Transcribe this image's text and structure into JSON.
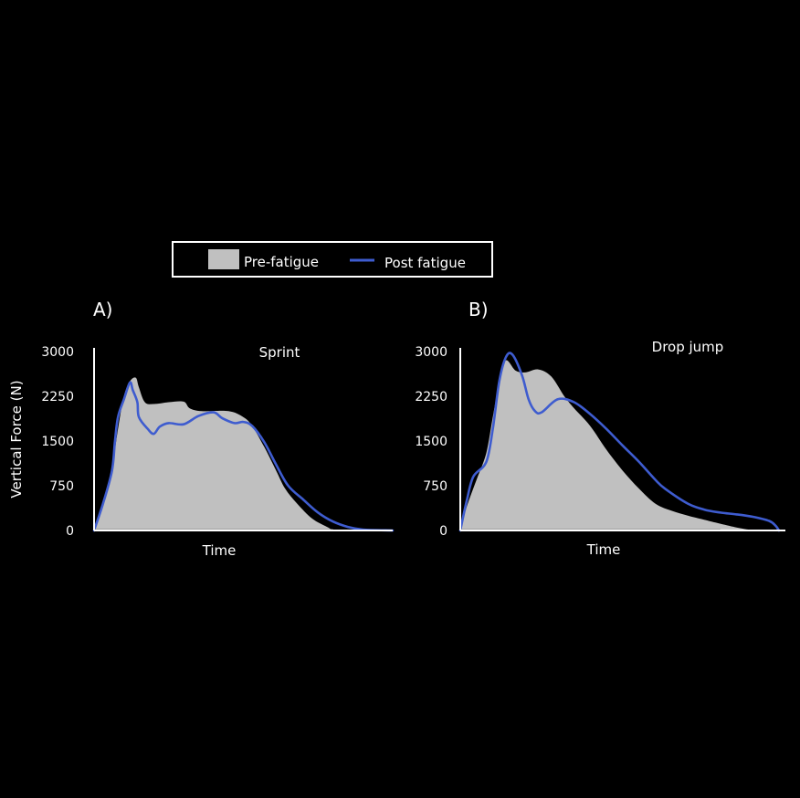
{
  "legend": {
    "items": [
      {
        "label": "Pre-fatigue",
        "kind": "area"
      },
      {
        "label": "Post fatigue",
        "kind": "line"
      }
    ]
  },
  "colors": {
    "background": "#000000",
    "pre_fatigue_fill": "#c0c0c0",
    "post_fatigue_line": "#3e5ccf",
    "axis": "#ffffff",
    "text": "#ffffff"
  },
  "chart_data": [
    {
      "type": "area",
      "panel_label": "A)",
      "title": "Sprint",
      "xlabel": "Time",
      "ylabel": "Vertical Force (N)",
      "ylim": [
        0,
        3000
      ],
      "yticks": [
        0,
        750,
        1500,
        2250,
        3000
      ],
      "ytick_labels": [
        "0",
        "750",
        "1500",
        "2250",
        "3000"
      ],
      "xlim": [
        0,
        1
      ],
      "x_ticks_shown": false,
      "grid": false,
      "series": [
        {
          "name": "Pre-fatigue",
          "style": "filled-area",
          "x": [
            0,
            0.03,
            0.06,
            0.08,
            0.1,
            0.12,
            0.14,
            0.15,
            0.17,
            0.2,
            0.25,
            0.3,
            0.32,
            0.36,
            0.45,
            0.5,
            0.53,
            0.57,
            0.61,
            0.64,
            0.68,
            0.73,
            0.78,
            0.8,
            0.82
          ],
          "y": [
            0,
            500,
            1050,
            1700,
            2250,
            2500,
            2560,
            2400,
            2150,
            2120,
            2150,
            2160,
            2050,
            2000,
            2000,
            1900,
            1750,
            1400,
            1000,
            700,
            450,
            200,
            60,
            10,
            0
          ]
        },
        {
          "name": "Post fatigue",
          "style": "line",
          "x": [
            0,
            0.03,
            0.06,
            0.07,
            0.08,
            0.1,
            0.12,
            0.13,
            0.145,
            0.15,
            0.18,
            0.2,
            0.22,
            0.25,
            0.3,
            0.35,
            0.4,
            0.43,
            0.47,
            0.5,
            0.53,
            0.57,
            0.61,
            0.65,
            0.7,
            0.75,
            0.8,
            0.85,
            0.9,
            1.0
          ],
          "y": [
            0,
            450,
            1000,
            1500,
            1900,
            2200,
            2480,
            2350,
            2150,
            1900,
            1700,
            1620,
            1740,
            1800,
            1780,
            1920,
            1980,
            1880,
            1800,
            1820,
            1750,
            1480,
            1100,
            750,
            520,
            300,
            150,
            60,
            15,
            0
          ]
        }
      ]
    },
    {
      "type": "area",
      "panel_label": "B)",
      "title": "Drop jump",
      "xlabel": "Time",
      "ylabel": "",
      "ylim": [
        0,
        3000
      ],
      "yticks": [
        0,
        750,
        1500,
        2250,
        3000
      ],
      "ytick_labels": [
        "0",
        "750",
        "1500",
        "2250",
        "3000"
      ],
      "xlim": [
        0,
        1
      ],
      "x_ticks_shown": false,
      "grid": false,
      "series": [
        {
          "name": "Pre-fatigue",
          "style": "filled-area",
          "x": [
            0,
            0.02,
            0.05,
            0.08,
            0.1,
            0.12,
            0.14,
            0.17,
            0.2,
            0.24,
            0.28,
            0.32,
            0.35,
            0.4,
            0.45,
            0.5,
            0.55,
            0.6,
            0.65,
            0.7,
            0.75,
            0.85,
            0.9,
            0.92
          ],
          "y": [
            0,
            400,
            850,
            1300,
            1900,
            2500,
            2850,
            2680,
            2650,
            2700,
            2580,
            2250,
            2050,
            1750,
            1350,
            1000,
            700,
            450,
            330,
            250,
            180,
            50,
            5,
            0
          ]
        },
        {
          "name": "Post fatigue",
          "style": "line",
          "x": [
            0,
            0.02,
            0.04,
            0.08,
            0.1,
            0.12,
            0.14,
            0.16,
            0.19,
            0.21,
            0.23,
            0.25,
            0.3,
            0.35,
            0.4,
            0.45,
            0.5,
            0.55,
            0.6,
            0.63,
            0.7,
            0.75,
            0.8,
            0.85,
            0.9,
            0.95,
            0.97,
            0.98
          ],
          "y": [
            0,
            500,
            900,
            1150,
            1700,
            2500,
            2900,
            2950,
            2600,
            2200,
            2000,
            1980,
            2200,
            2150,
            1950,
            1700,
            1420,
            1150,
            850,
            700,
            450,
            350,
            300,
            270,
            230,
            160,
            80,
            0
          ]
        }
      ]
    }
  ]
}
